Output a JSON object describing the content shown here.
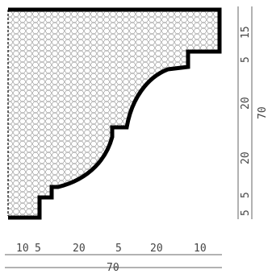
{
  "bottom_dimensions": {
    "segments": [
      "10",
      "5",
      "20",
      "5",
      "20",
      "10"
    ],
    "total": "70"
  },
  "right_dimensions": {
    "segments": [
      "15",
      "5",
      "20",
      "20",
      "5",
      "5"
    ],
    "total": "70"
  },
  "colors": {
    "profile_outline": "#000000",
    "hatch": "#8a8a8a",
    "dimension": "#666666"
  }
}
